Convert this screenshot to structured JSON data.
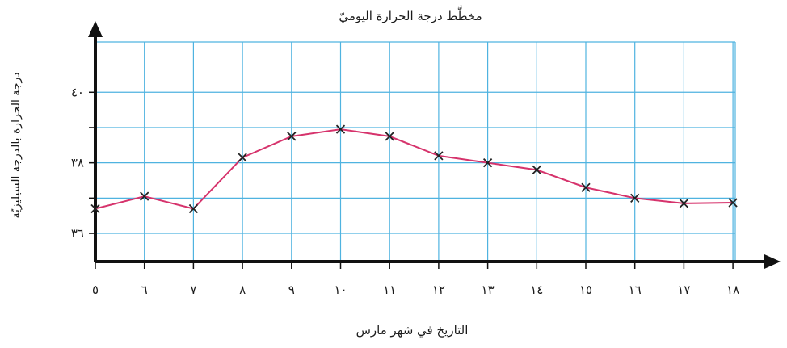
{
  "chart_data": {
    "type": "line",
    "title": "مخطَّط درجة الحرارة اليوميّ",
    "xlabel": "التاريخ في شهر مارس",
    "ylabel": "درجة الحرارة بالدرجة السيليزيّة",
    "x": [
      5,
      6,
      7,
      8,
      9,
      10,
      11,
      12,
      13,
      14,
      15,
      16,
      17,
      18
    ],
    "x_tick_labels": [
      "٥",
      "٦",
      "٧",
      "٨",
      "٩",
      "١٠",
      "١١",
      "١٢",
      "١٣",
      "١٤",
      "١٥",
      "١٦",
      "١٧",
      "١٨"
    ],
    "y_ticks": [
      36,
      38,
      40
    ],
    "y_tick_labels": [
      "٣٦",
      "٣٨",
      "٤٠"
    ],
    "ylim": [
      35.2,
      41.7
    ],
    "grid": true,
    "series": [
      {
        "values": [
          36.7,
          37.05,
          36.7,
          38.15,
          38.75,
          38.95,
          38.75,
          38.2,
          38.0,
          37.8,
          37.3,
          37.0,
          36.85,
          36.87
        ]
      }
    ],
    "colors": {
      "grid": "#4fb3e0",
      "line": "#d6336c",
      "marker": "#222222",
      "axis": "#111111"
    }
  }
}
